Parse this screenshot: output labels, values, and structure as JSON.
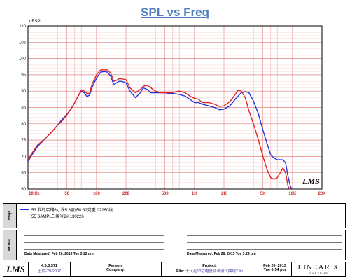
{
  "chart_data": {
    "type": "line",
    "title": "SPL vs Freq",
    "ylabel": "dBSPL",
    "xscale": "log",
    "xlim": [
      20,
      20000
    ],
    "ylim": [
      60,
      110
    ],
    "grid": true,
    "x_ticks": [
      20,
      50,
      100,
      200,
      500,
      1000,
      2000,
      5000,
      10000,
      20000
    ],
    "x_tick_labels": [
      "20  Hz",
      "50",
      "100",
      "200",
      "500",
      "1K",
      "2K",
      "5K",
      "10K",
      "20K"
    ],
    "y_ticks": [
      60,
      65,
      70,
      75,
      80,
      85,
      90,
      95,
      100,
      105,
      110
    ],
    "series": [
      {
        "name": "53  我的店铺6寸浅5.8欧姆0.32克重 02260线",
        "color": "#2233dd",
        "points": [
          [
            20,
            68.5
          ],
          [
            22,
            70.5
          ],
          [
            25,
            73
          ],
          [
            30,
            75.5
          ],
          [
            35,
            77.5
          ],
          [
            40,
            79.5
          ],
          [
            45,
            81.5
          ],
          [
            50,
            83
          ],
          [
            55,
            84.5
          ],
          [
            60,
            86.5
          ],
          [
            65,
            88.5
          ],
          [
            70,
            90
          ],
          [
            75,
            89.5
          ],
          [
            80,
            88.3
          ],
          [
            85,
            88.8
          ],
          [
            90,
            91
          ],
          [
            100,
            94
          ],
          [
            110,
            95.8
          ],
          [
            120,
            96
          ],
          [
            130,
            95.8
          ],
          [
            140,
            94.5
          ],
          [
            150,
            92
          ],
          [
            160,
            92.5
          ],
          [
            170,
            93
          ],
          [
            180,
            93
          ],
          [
            200,
            92.5
          ],
          [
            220,
            90
          ],
          [
            250,
            88
          ],
          [
            280,
            89.5
          ],
          [
            300,
            91
          ],
          [
            330,
            90.5
          ],
          [
            360,
            89.5
          ],
          [
            400,
            89.5
          ],
          [
            450,
            89.5
          ],
          [
            500,
            89.5
          ],
          [
            550,
            89.3
          ],
          [
            600,
            89.3
          ],
          [
            700,
            89
          ],
          [
            800,
            88.5
          ],
          [
            900,
            87.5
          ],
          [
            1000,
            86.5
          ],
          [
            1100,
            86.5
          ],
          [
            1200,
            86
          ],
          [
            1400,
            85.5
          ],
          [
            1600,
            85
          ],
          [
            1800,
            84.3
          ],
          [
            2000,
            84.5
          ],
          [
            2300,
            85.5
          ],
          [
            2600,
            87.5
          ],
          [
            3000,
            89.5
          ],
          [
            3300,
            89.8
          ],
          [
            3600,
            89.5
          ],
          [
            4000,
            87
          ],
          [
            4500,
            83
          ],
          [
            5000,
            78
          ],
          [
            5500,
            74
          ],
          [
            6000,
            70.5
          ],
          [
            6500,
            69.5
          ],
          [
            7000,
            69
          ],
          [
            8000,
            69
          ],
          [
            8500,
            68
          ],
          [
            9000,
            64
          ],
          [
            9500,
            61
          ],
          [
            10000,
            59.5
          ]
        ]
      },
      {
        "name": "55  SAMPLE 编号2#    130226",
        "color": "#dd2222",
        "points": [
          [
            20,
            69
          ],
          [
            22,
            71
          ],
          [
            25,
            73.5
          ],
          [
            30,
            75.5
          ],
          [
            35,
            77.5
          ],
          [
            40,
            79.5
          ],
          [
            45,
            81
          ],
          [
            50,
            82.8
          ],
          [
            55,
            84.5
          ],
          [
            60,
            86.5
          ],
          [
            65,
            88.5
          ],
          [
            70,
            90.3
          ],
          [
            75,
            90
          ],
          [
            80,
            89.3
          ],
          [
            85,
            89.3
          ],
          [
            90,
            92
          ],
          [
            100,
            95
          ],
          [
            110,
            96.5
          ],
          [
            120,
            96.5
          ],
          [
            130,
            96.5
          ],
          [
            140,
            95.5
          ],
          [
            150,
            93
          ],
          [
            160,
            93.3
          ],
          [
            170,
            93.8
          ],
          [
            180,
            93.8
          ],
          [
            200,
            93.5
          ],
          [
            220,
            91
          ],
          [
            250,
            89.5
          ],
          [
            280,
            90.5
          ],
          [
            300,
            91.5
          ],
          [
            330,
            91.8
          ],
          [
            360,
            91
          ],
          [
            400,
            90
          ],
          [
            450,
            89.5
          ],
          [
            500,
            89.5
          ],
          [
            550,
            89.5
          ],
          [
            600,
            89.6
          ],
          [
            700,
            90
          ],
          [
            800,
            89.5
          ],
          [
            900,
            88.5
          ],
          [
            1000,
            87.8
          ],
          [
            1100,
            87.5
          ],
          [
            1200,
            86.5
          ],
          [
            1400,
            86.5
          ],
          [
            1600,
            86
          ],
          [
            1800,
            85.3
          ],
          [
            2000,
            85.5
          ],
          [
            2300,
            86.8
          ],
          [
            2600,
            89
          ],
          [
            2800,
            90.3
          ],
          [
            3000,
            90
          ],
          [
            3300,
            88
          ],
          [
            3600,
            84
          ],
          [
            4000,
            80
          ],
          [
            4500,
            75
          ],
          [
            5000,
            70
          ],
          [
            5500,
            66
          ],
          [
            6000,
            63.5
          ],
          [
            6500,
            63
          ],
          [
            7000,
            63.5
          ],
          [
            7500,
            65
          ],
          [
            8000,
            66.5
          ],
          [
            8500,
            65
          ],
          [
            9000,
            61
          ],
          [
            9500,
            59.5
          ]
        ]
      }
    ]
  },
  "legend": {
    "label": "Msp",
    "entries": [
      {
        "text": "53  我的店铺6寸浅5.8欧姆0.32克重 02260线",
        "color": "#2233dd"
      },
      {
        "text": "55  SAMPLE 编号2#    130226",
        "color": "#dd2222"
      }
    ]
  },
  "notes": {
    "label": "Notes",
    "measured_left": "Data Measured: Feb 26, 2013  Tue  3:22 pm",
    "measured_right": "Data Measured: Feb 26, 2013  Tue  3:29 pm"
  },
  "watermark": "LMS",
  "footer": {
    "logo": "LMS",
    "version": "4.6.0.371",
    "date_code": "王师-29-2007",
    "person_label": "Person:",
    "company_label": "Company:",
    "project_label": "Project:",
    "file_label": "File:",
    "file_name": "十尺花10寸电信测试调试曲线2.lib",
    "date": "Feb 26, 2013",
    "time": "Tue  6:54 pm",
    "brand": "LINEAR X",
    "brand_sub": "S Y S T E M S"
  }
}
